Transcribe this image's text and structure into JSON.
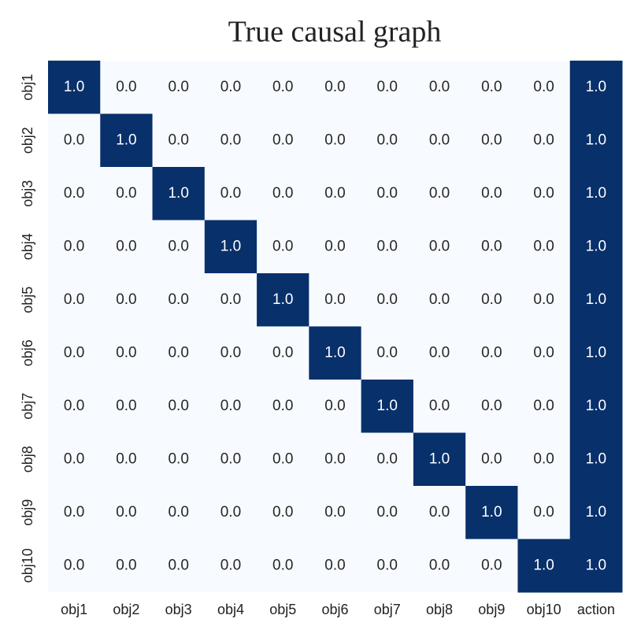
{
  "chart_data": {
    "type": "heatmap",
    "title": "True causal graph",
    "x_categories": [
      "obj1",
      "obj2",
      "obj3",
      "obj4",
      "obj5",
      "obj6",
      "obj7",
      "obj8",
      "obj9",
      "obj10",
      "action"
    ],
    "y_categories": [
      "obj1",
      "obj2",
      "obj3",
      "obj4",
      "obj5",
      "obj6",
      "obj7",
      "obj8",
      "obj9",
      "obj10"
    ],
    "values": [
      [
        1,
        0,
        0,
        0,
        0,
        0,
        0,
        0,
        0,
        0,
        1
      ],
      [
        0,
        1,
        0,
        0,
        0,
        0,
        0,
        0,
        0,
        0,
        1
      ],
      [
        0,
        0,
        1,
        0,
        0,
        0,
        0,
        0,
        0,
        0,
        1
      ],
      [
        0,
        0,
        0,
        1,
        0,
        0,
        0,
        0,
        0,
        0,
        1
      ],
      [
        0,
        0,
        0,
        0,
        1,
        0,
        0,
        0,
        0,
        0,
        1
      ],
      [
        0,
        0,
        0,
        0,
        0,
        1,
        0,
        0,
        0,
        0,
        1
      ],
      [
        0,
        0,
        0,
        0,
        0,
        0,
        1,
        0,
        0,
        0,
        1
      ],
      [
        0,
        0,
        0,
        0,
        0,
        0,
        0,
        1,
        0,
        0,
        1
      ],
      [
        0,
        0,
        0,
        0,
        0,
        0,
        0,
        0,
        1,
        0,
        1
      ],
      [
        0,
        0,
        0,
        0,
        0,
        0,
        0,
        0,
        0,
        1,
        1
      ]
    ],
    "value_labels": [
      [
        "1.0",
        "0.0",
        "0.0",
        "0.0",
        "0.0",
        "0.0",
        "0.0",
        "0.0",
        "0.0",
        "0.0",
        "1.0"
      ],
      [
        "0.0",
        "1.0",
        "0.0",
        "0.0",
        "0.0",
        "0.0",
        "0.0",
        "0.0",
        "0.0",
        "0.0",
        "1.0"
      ],
      [
        "0.0",
        "0.0",
        "1.0",
        "0.0",
        "0.0",
        "0.0",
        "0.0",
        "0.0",
        "0.0",
        "0.0",
        "1.0"
      ],
      [
        "0.0",
        "0.0",
        "0.0",
        "1.0",
        "0.0",
        "0.0",
        "0.0",
        "0.0",
        "0.0",
        "0.0",
        "1.0"
      ],
      [
        "0.0",
        "0.0",
        "0.0",
        "0.0",
        "1.0",
        "0.0",
        "0.0",
        "0.0",
        "0.0",
        "0.0",
        "1.0"
      ],
      [
        "0.0",
        "0.0",
        "0.0",
        "0.0",
        "0.0",
        "1.0",
        "0.0",
        "0.0",
        "0.0",
        "0.0",
        "1.0"
      ],
      [
        "0.0",
        "0.0",
        "0.0",
        "0.0",
        "0.0",
        "0.0",
        "1.0",
        "0.0",
        "0.0",
        "0.0",
        "1.0"
      ],
      [
        "0.0",
        "0.0",
        "0.0",
        "0.0",
        "0.0",
        "0.0",
        "0.0",
        "1.0",
        "0.0",
        "0.0",
        "1.0"
      ],
      [
        "0.0",
        "0.0",
        "0.0",
        "0.0",
        "0.0",
        "0.0",
        "0.0",
        "0.0",
        "1.0",
        "0.0",
        "1.0"
      ],
      [
        "0.0",
        "0.0",
        "0.0",
        "0.0",
        "0.0",
        "0.0",
        "0.0",
        "0.0",
        "0.0",
        "1.0",
        "1.0"
      ]
    ],
    "colors": [
      "#f7fbff",
      "#08306b"
    ]
  }
}
